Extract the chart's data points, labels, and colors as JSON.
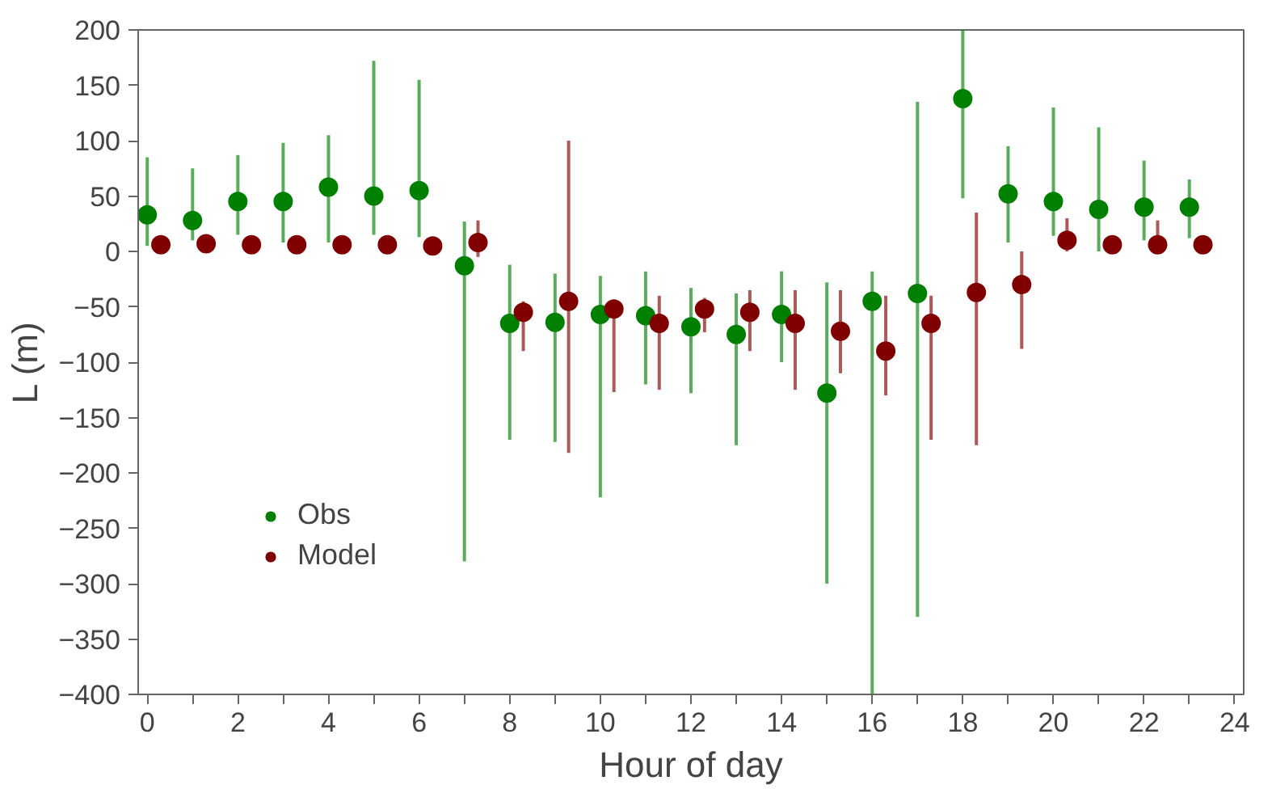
{
  "chart_data": {
    "type": "scatter",
    "xlabel": "Hour of day",
    "ylabel": "L (m)",
    "xlim": [
      -0.2,
      24.2
    ],
    "ylim": [
      -400,
      200
    ],
    "xticks": [
      0,
      {
        "value": 1,
        "label": null
      },
      2,
      {
        "value": 3,
        "label": null
      },
      4,
      {
        "value": 5,
        "label": null
      },
      6,
      {
        "value": 7,
        "label": null
      },
      8,
      {
        "value": 9,
        "label": null
      },
      10,
      {
        "value": 11,
        "label": null
      },
      12,
      {
        "value": 13,
        "label": null
      },
      14,
      {
        "value": 15,
        "label": null
      },
      16,
      {
        "value": 17,
        "label": null
      },
      18,
      {
        "value": 19,
        "label": null
      },
      20,
      {
        "value": 21,
        "label": null
      },
      22,
      {
        "value": 23,
        "label": null
      },
      24
    ],
    "yticks": [
      -400,
      -350,
      -300,
      -250,
      -200,
      -150,
      -100,
      -50,
      0,
      50,
      100,
      150,
      200
    ],
    "grid": false,
    "legend": "bottom left",
    "marker": "circle",
    "series": [
      {
        "name": "Obs",
        "color": "#008000",
        "x": [
          0,
          1,
          2,
          3,
          4,
          5,
          6,
          7,
          8,
          9,
          10,
          11,
          12,
          13,
          14,
          15,
          16,
          17,
          18,
          19,
          20,
          21,
          22,
          23
        ],
        "values": [
          33,
          28,
          45,
          45,
          58,
          50,
          55,
          -13,
          -65,
          -64,
          -57,
          -58,
          -68,
          -75,
          -57,
          -128,
          -45,
          -38,
          138,
          52,
          45,
          38,
          40,
          40
        ],
        "errors": [
          [
            5,
            85
          ],
          [
            10,
            75
          ],
          [
            15,
            87
          ],
          [
            8,
            98
          ],
          [
            8,
            105
          ],
          [
            15,
            172
          ],
          [
            13,
            155
          ],
          [
            -280,
            27
          ],
          [
            -170,
            -12
          ],
          [
            -172,
            -20
          ],
          [
            -222,
            -22
          ],
          [
            -120,
            -18
          ],
          [
            -128,
            -33
          ],
          [
            -175,
            -38
          ],
          [
            -100,
            -18
          ],
          [
            -300,
            -28
          ],
          [
            -400,
            -18
          ],
          [
            -330,
            135
          ],
          [
            48,
            200
          ],
          [
            8,
            95
          ],
          [
            14,
            130
          ],
          [
            0,
            112
          ],
          [
            10,
            82
          ],
          [
            12,
            65
          ]
        ]
      },
      {
        "name": "Model",
        "color": "#800000",
        "x": [
          0.3,
          1.3,
          2.3,
          3.3,
          4.3,
          5.3,
          6.3,
          7.3,
          8.3,
          9.3,
          10.3,
          11.3,
          12.3,
          13.3,
          14.3,
          15.3,
          16.3,
          17.3,
          18.3,
          19.3,
          20.3,
          21.3,
          22.3,
          23.3
        ],
        "values": [
          6,
          7,
          6,
          6,
          6,
          6,
          5,
          8,
          -55,
          -45,
          -52,
          -65,
          -52,
          -55,
          -65,
          -72,
          -90,
          -65,
          -37,
          -30,
          10,
          6,
          6,
          6
        ],
        "errors": [
          null,
          null,
          null,
          null,
          null,
          null,
          null,
          [
            -5,
            28
          ],
          [
            -90,
            -45
          ],
          [
            -182,
            100
          ],
          [
            -127,
            -45
          ],
          [
            -125,
            -40
          ],
          [
            -73,
            -42
          ],
          [
            -90,
            -35
          ],
          [
            -125,
            -35
          ],
          [
            -110,
            -35
          ],
          [
            -130,
            -40
          ],
          [
            -170,
            -40
          ],
          [
            -175,
            35
          ],
          [
            -88,
            0
          ],
          [
            0,
            30
          ],
          null,
          [
            0,
            28
          ],
          null
        ]
      }
    ]
  }
}
